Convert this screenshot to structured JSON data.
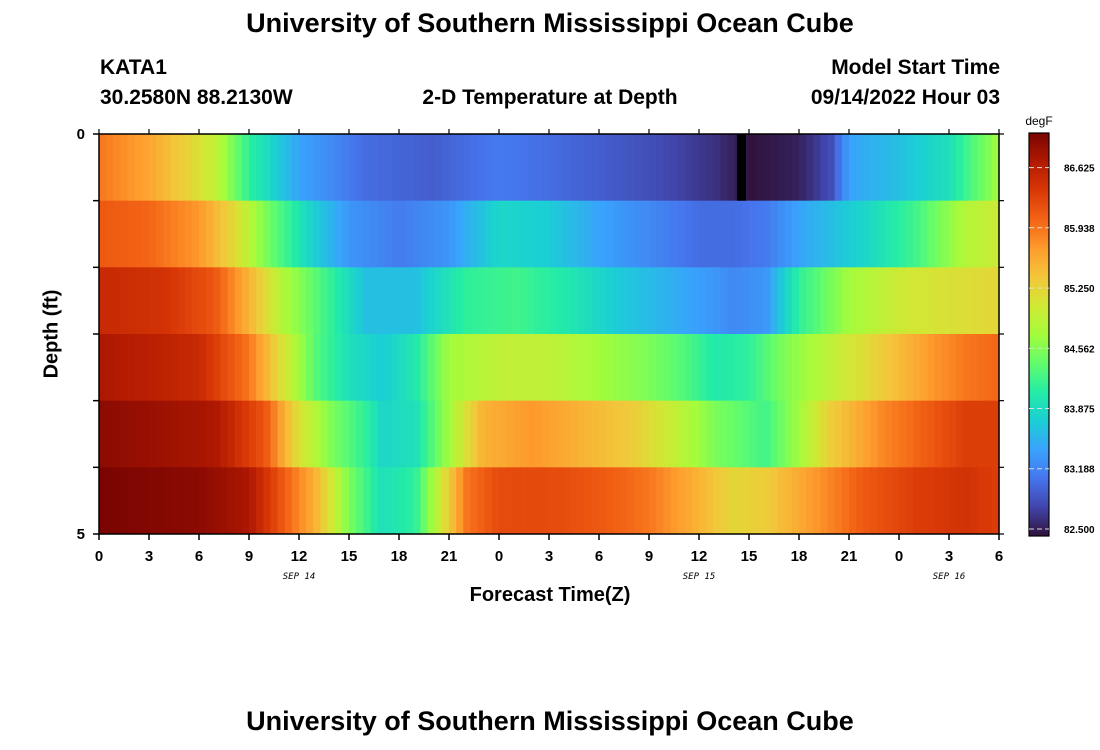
{
  "header": {
    "title": "University of Southern Mississippi Ocean Cube",
    "station": "KATA1",
    "coords": "30.2580N  88.2130W",
    "plot_title": "2-D Temperature at Depth",
    "model_label": "Model Start Time",
    "model_time": "09/14/2022 Hour 03",
    "footer_title": "University of Southern Mississippi Ocean Cube"
  },
  "chart_data": {
    "type": "heatmap",
    "title": "2-D Temperature at Depth",
    "xlabel": "Forecast Time(Z)",
    "ylabel": "Depth (ft)",
    "x_tick_labels": [
      "0",
      "3",
      "6",
      "9",
      "12",
      "15",
      "18",
      "21",
      "0",
      "3",
      "6",
      "9",
      "12",
      "15",
      "18",
      "21",
      "0",
      "3",
      "6"
    ],
    "date_labels": [
      {
        "label": "SEP 14",
        "hour_index": 12
      },
      {
        "label": "SEP 15",
        "hour_index": 36
      },
      {
        "label": "SEP 16",
        "hour_index": 51
      }
    ],
    "x_range_hours": [
      0,
      54
    ],
    "y_tick_labels": [
      "0",
      "5"
    ],
    "ylim": [
      0,
      5
    ],
    "depth_layers": [
      0,
      1,
      2,
      3,
      4,
      5
    ],
    "colorbar": {
      "unit": "degF",
      "ticks": [
        "86.625",
        "85.938",
        "85.250",
        "84.562",
        "83.875",
        "83.188",
        "82.500"
      ],
      "range": [
        82.5,
        87.1
      ],
      "colors": [
        "#30123b",
        "#4145ab",
        "#4675ed",
        "#39a2fc",
        "#1bcfd4",
        "#24eca6",
        "#61fc6c",
        "#a4fc3b",
        "#d1e834",
        "#f3c63a",
        "#fe9b2d",
        "#f36315",
        "#d93806",
        "#b11901",
        "#7a0402"
      ]
    },
    "series": [
      {
        "depth_ft": 0,
        "knots_hours": [
          0,
          3,
          5,
          7,
          9,
          12,
          16,
          20,
          24,
          30,
          33,
          37,
          39,
          42,
          44,
          45,
          48,
          51,
          54
        ],
        "knots_degF": [
          86.0,
          85.7,
          85.4,
          85.0,
          84.2,
          83.5,
          83.1,
          83.0,
          83.2,
          83.0,
          82.9,
          82.7,
          82.5,
          82.6,
          82.9,
          83.5,
          83.7,
          84.0,
          84.8
        ]
      },
      {
        "depth_ft": 1,
        "knots_hours": [
          0,
          3,
          6,
          8,
          10,
          13,
          15,
          18,
          21,
          24,
          27,
          30,
          33,
          36,
          38,
          40,
          42,
          46,
          49,
          52,
          54
        ],
        "knots_degF": [
          86.2,
          86.1,
          85.8,
          85.3,
          84.6,
          83.8,
          83.4,
          83.2,
          83.4,
          83.9,
          83.8,
          83.5,
          83.3,
          83.1,
          83.1,
          83.2,
          83.5,
          83.9,
          84.3,
          84.9,
          85.1
        ]
      },
      {
        "depth_ft": 2,
        "knots_hours": [
          0,
          4,
          7,
          9,
          11,
          14,
          16,
          19,
          22,
          25,
          28,
          31,
          34,
          37,
          38,
          40,
          42,
          45,
          48,
          51,
          54
        ],
        "knots_degF": [
          86.6,
          86.5,
          86.2,
          85.6,
          84.9,
          84.2,
          83.7,
          83.7,
          84.2,
          84.3,
          84.1,
          83.8,
          83.6,
          83.4,
          83.3,
          83.4,
          84.2,
          84.8,
          85.1,
          85.2,
          85.3
        ]
      },
      {
        "depth_ft": 3,
        "knots_hours": [
          0,
          6,
          9,
          11,
          13,
          15,
          17,
          19,
          21,
          24,
          27,
          30,
          33,
          35,
          37,
          39,
          41,
          44,
          47,
          50,
          52,
          54
        ],
        "knots_degF": [
          86.8,
          86.6,
          86.0,
          85.2,
          84.4,
          84.0,
          83.8,
          84.1,
          84.8,
          85.0,
          85.0,
          84.8,
          84.6,
          84.4,
          84.1,
          84.2,
          84.6,
          85.0,
          85.4,
          85.8,
          86.0,
          86.1
        ]
      },
      {
        "depth_ft": 4,
        "knots_hours": [
          0,
          7,
          10,
          12,
          14,
          16,
          17,
          19,
          21,
          23,
          26,
          29,
          32,
          34,
          37,
          40,
          42,
          44,
          47,
          50,
          52,
          54
        ],
        "knots_degF": [
          87.0,
          86.8,
          86.2,
          85.2,
          84.6,
          84.2,
          83.9,
          84.0,
          84.8,
          85.6,
          85.8,
          85.6,
          85.4,
          85.1,
          84.6,
          84.3,
          84.8,
          85.4,
          85.9,
          86.2,
          86.4,
          86.4
        ]
      },
      {
        "depth_ft": 5,
        "knots_hours": [
          0,
          6,
          9,
          11,
          13,
          15,
          17,
          19,
          20,
          22,
          24,
          27,
          30,
          33,
          36,
          38,
          40,
          43,
          46,
          49,
          52,
          54
        ],
        "knots_degF": [
          87.1,
          87.0,
          86.8,
          86.2,
          85.6,
          84.6,
          84.0,
          84.2,
          84.8,
          86.0,
          86.3,
          86.3,
          86.2,
          86.0,
          85.6,
          85.3,
          85.4,
          85.8,
          86.2,
          86.4,
          86.5,
          86.4
        ]
      }
    ]
  }
}
